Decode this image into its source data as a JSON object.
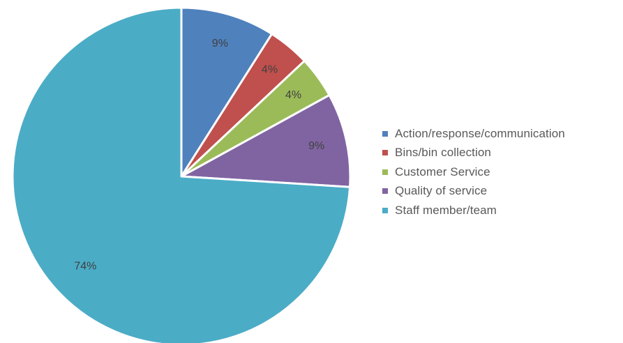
{
  "chart_data": {
    "type": "pie",
    "title": "",
    "slices": [
      {
        "label": "Action/response/communication",
        "value": 9,
        "display": "9%",
        "color": "#4f81bd"
      },
      {
        "label": "Bins/bin collection",
        "value": 4,
        "display": "4%",
        "color": "#c0504d"
      },
      {
        "label": "Customer Service",
        "value": 4,
        "display": "4%",
        "color": "#9bbb59"
      },
      {
        "label": "Quality of service",
        "value": 9,
        "display": "9%",
        "color": "#8064a2"
      },
      {
        "label": "Staff member/team",
        "value": 74,
        "display": "74%",
        "color": "#4bacc6"
      }
    ],
    "start_angle": "12 o'clock",
    "direction": "clockwise",
    "legend_position": "right",
    "data_labels": "inside-end"
  }
}
